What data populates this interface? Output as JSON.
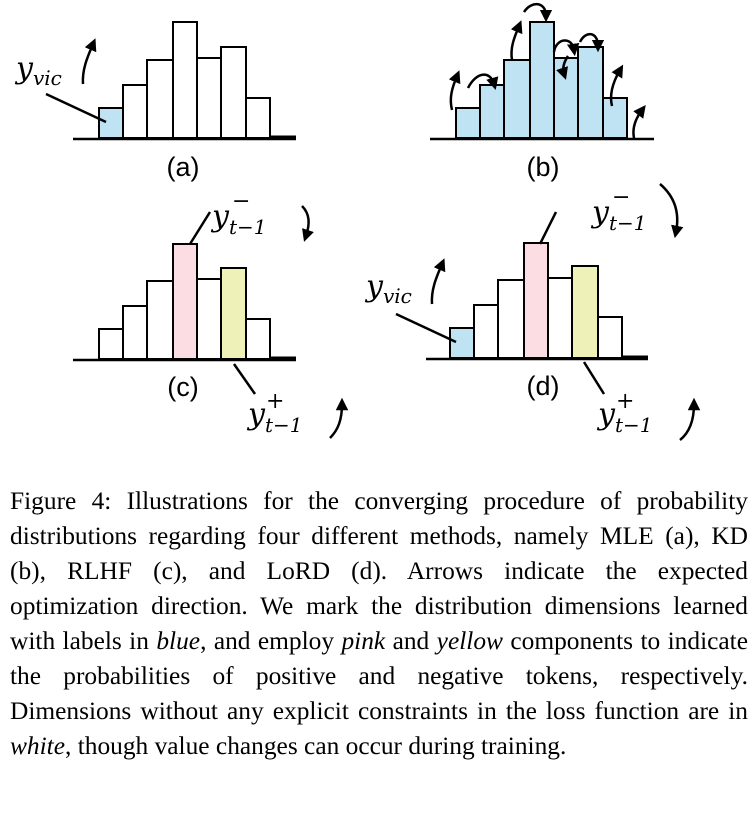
{
  "figure": {
    "panels": [
      {
        "id": "a",
        "label": "(a)",
        "annotations": [
          {
            "kind": "label",
            "base": "y",
            "sub": "vic",
            "direction": "up"
          }
        ]
      },
      {
        "id": "b",
        "label": "(b)",
        "annotations": []
      },
      {
        "id": "c",
        "label": "(c)",
        "annotations": [
          {
            "kind": "negative",
            "base": "y",
            "sub": "t−1",
            "sup": "−",
            "direction": "down"
          },
          {
            "kind": "positive",
            "base": "y",
            "sub": "t−1",
            "sup": "+",
            "direction": "up"
          }
        ]
      },
      {
        "id": "d",
        "label": "(d)",
        "annotations": [
          {
            "kind": "label",
            "base": "y",
            "sub": "vic",
            "direction": "up"
          },
          {
            "kind": "negative",
            "base": "y",
            "sub": "t−1",
            "sup": "−",
            "direction": "down"
          },
          {
            "kind": "positive",
            "base": "y",
            "sub": "t−1",
            "sup": "+",
            "direction": "up"
          }
        ]
      }
    ],
    "colors": {
      "blue": "#bfe3f3",
      "pink": "#fbdde3",
      "yellow": "#eef2b8",
      "white": "#ffffff",
      "stroke": "#000000"
    }
  },
  "caption": {
    "p1": "Figure 4: Illustrations for the converging procedure of probability distributions regarding four different methods, namely MLE (a), KD (b), RLHF (c), and LoRD (d). Arrows indicate the expected optimization direction. We mark the distribution dimensions learned with labels in ",
    "em1": "blue",
    "p2": ", and employ ",
    "em2": "pink",
    "p3": " and ",
    "em3": "yellow",
    "p4": " components to indicate the probabilities of positive and negative tokens, respectively. Dimensions without any explicit constraints in the loss function are in ",
    "em4": "white",
    "p5": ", though value changes can occur during training."
  }
}
